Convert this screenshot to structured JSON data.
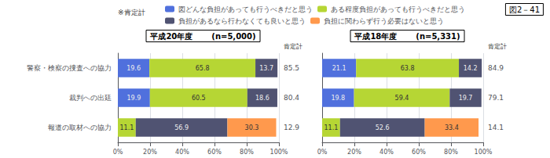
{
  "title": "図2－41",
  "annotations": [
    "※肯定計"
  ],
  "chart_data": [
    {
      "type": "bar",
      "orientation": "horizontal",
      "stacked": true,
      "title": "平成20年度",
      "subtitle": "(n=5,000)",
      "categories": [
        "警察・検察の捜査への協力",
        "裁判への出廷",
        "報道の取材への協力"
      ],
      "series": [
        {
          "name": "図どんな負担があっても行うべきだと思う",
          "values": [
            19.6,
            19.9,
            null
          ]
        },
        {
          "name": "ある程度負担があっても行うべきだと思う",
          "values": [
            65.8,
            60.5,
            11.1
          ]
        },
        {
          "name": "負担があるなら行わなくても良いと思う",
          "values": [
            13.7,
            18.6,
            56.9
          ]
        },
        {
          "name": "負担に関わらず行う必要はないと思う",
          "values": [
            null,
            null,
            30.3
          ]
        }
      ],
      "xlim": [
        0,
        100
      ],
      "xticks": [
        {
          "value": 0,
          "label": "0%"
        },
        {
          "value": 20,
          "label": "20%"
        },
        {
          "value": 40,
          "label": "40%"
        },
        {
          "value": 60,
          "label": "60%"
        },
        {
          "value": 80,
          "label": "80%"
        },
        {
          "value": 100,
          "label": "100%"
        }
      ],
      "grid": true,
      "data_labels": true,
      "legend": "top",
      "affirmative_label": "肯定計",
      "affirmative": [
        85.5,
        80.4,
        12.9
      ]
    },
    {
      "type": "bar",
      "orientation": "horizontal",
      "stacked": true,
      "title": "平成18年度",
      "subtitle": "(n=5,331)",
      "categories": [
        "警察・検察の捜査への協力",
        "裁判への出廷",
        "報道の取材への協力"
      ],
      "series": [
        {
          "name": "図どんな負担があっても行うべきだと思う",
          "values": [
            21.1,
            19.8,
            null
          ]
        },
        {
          "name": "ある程度負担があっても行うべきだと思う",
          "values": [
            63.8,
            59.4,
            11.1
          ]
        },
        {
          "name": "負担があるなら行わなくても良いと思う",
          "values": [
            14.2,
            19.7,
            52.6
          ]
        },
        {
          "name": "負担に関わらず行う必要はないと思う",
          "values": [
            null,
            null,
            33.4
          ]
        }
      ],
      "xlim": [
        0,
        100
      ],
      "xticks": [
        {
          "value": 0,
          "label": "0%"
        },
        {
          "value": 20,
          "label": "20%"
        },
        {
          "value": 40,
          "label": "40%"
        },
        {
          "value": 60,
          "label": "60%"
        },
        {
          "value": 80,
          "label": "80%"
        },
        {
          "value": 100,
          "label": "100%"
        }
      ],
      "grid": true,
      "data_labels": true,
      "tick_labels": "x",
      "affirmative_label": "肯定計",
      "affirmative": [
        84.9,
        79.1,
        14.1
      ]
    }
  ]
}
